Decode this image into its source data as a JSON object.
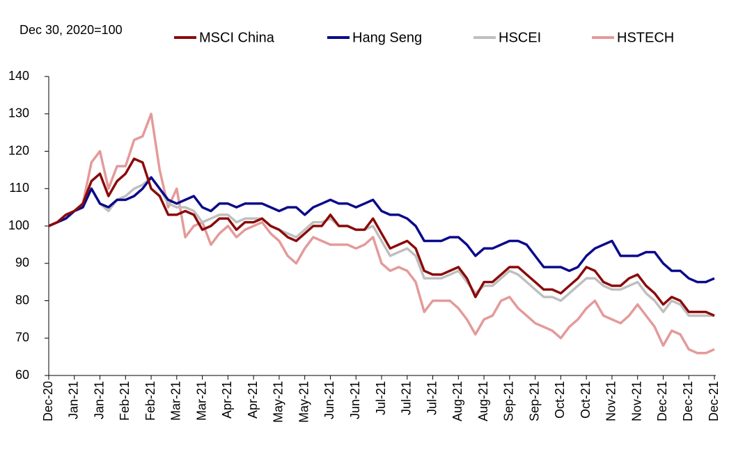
{
  "chart_data": {
    "type": "line",
    "annotation": "Dec 30, 2020=100",
    "categories": [
      "Dec-20",
      null,
      null,
      "Jan-21",
      null,
      null,
      "Jan-21",
      null,
      null,
      "Feb-21",
      null,
      null,
      "Feb-21",
      null,
      null,
      "Mar-21",
      null,
      null,
      "Mar-21",
      null,
      null,
      "Apr-21",
      null,
      null,
      "Apr-21",
      null,
      null,
      "May-21",
      null,
      null,
      "May-21",
      null,
      null,
      "Jun-21",
      null,
      null,
      "Jun-21",
      null,
      null,
      "Jul-21",
      null,
      null,
      "Jul-21",
      null,
      null,
      "Jul-21",
      null,
      null,
      "Aug-21",
      null,
      null,
      "Aug-21",
      null,
      null,
      "Sep-21",
      null,
      null,
      "Sep-21",
      null,
      null,
      "Oct-21",
      null,
      null,
      "Oct-21",
      null,
      null,
      "Nov-21",
      null,
      null,
      "Nov-21",
      null,
      null,
      "Dec-21",
      null,
      null,
      "Dec-21",
      null,
      null,
      "Dec-21"
    ],
    "series": [
      {
        "name": "MSCI China",
        "color": "#8b0a0a",
        "values": [
          100,
          101,
          103,
          104,
          106,
          112,
          114,
          108,
          112,
          114,
          118,
          117,
          110,
          108,
          103,
          103,
          104,
          103,
          99,
          100,
          102,
          102,
          99,
          101,
          101,
          102,
          100,
          99,
          97,
          96,
          98,
          100,
          100,
          103,
          100,
          100,
          99,
          99,
          102,
          98,
          94,
          95,
          96,
          94,
          88,
          87,
          87,
          88,
          89,
          86,
          81,
          85,
          85,
          87,
          89,
          89,
          87,
          85,
          83,
          83,
          82,
          84,
          86,
          89,
          88,
          85,
          84,
          84,
          86,
          87,
          84,
          82,
          79,
          81,
          80,
          77,
          77,
          77,
          76
        ]
      },
      {
        "name": "Hang Seng",
        "color": "#0a0a8b",
        "values": [
          100,
          101,
          102,
          104,
          105,
          110,
          106,
          105,
          107,
          107,
          108,
          110,
          113,
          110,
          107,
          106,
          107,
          108,
          105,
          104,
          106,
          106,
          105,
          106,
          106,
          106,
          105,
          104,
          105,
          105,
          103,
          105,
          106,
          107,
          106,
          106,
          105,
          106,
          107,
          104,
          103,
          103,
          102,
          100,
          96,
          96,
          96,
          97,
          97,
          95,
          92,
          94,
          94,
          95,
          96,
          96,
          95,
          92,
          89,
          89,
          89,
          88,
          89,
          92,
          94,
          95,
          96,
          92,
          92,
          92,
          93,
          93,
          90,
          88,
          88,
          86,
          85,
          85,
          86
        ]
      },
      {
        "name": "HSCEI",
        "color": "#bfbfbf",
        "values": [
          100,
          101,
          102,
          104,
          105,
          110,
          106,
          104,
          107,
          108,
          110,
          111,
          113,
          110,
          106,
          105,
          105,
          104,
          101,
          102,
          103,
          103,
          101,
          102,
          102,
          102,
          100,
          99,
          98,
          97,
          99,
          101,
          101,
          102,
          100,
          100,
          99,
          99,
          100,
          96,
          92,
          93,
          94,
          92,
          86,
          86,
          86,
          87,
          88,
          85,
          82,
          84,
          84,
          86,
          88,
          87,
          85,
          83,
          81,
          81,
          80,
          82,
          84,
          86,
          86,
          84,
          83,
          83,
          84,
          85,
          82,
          80,
          77,
          80,
          79,
          76,
          76,
          76,
          76
        ]
      },
      {
        "name": "HSTECH",
        "color": "#e49a9a",
        "values": [
          100,
          101,
          102,
          104,
          106,
          117,
          120,
          110,
          116,
          116,
          123,
          124,
          130,
          115,
          105,
          110,
          97,
          100,
          101,
          95,
          98,
          100,
          97,
          99,
          100,
          101,
          98,
          96,
          92,
          90,
          94,
          97,
          96,
          95,
          95,
          95,
          94,
          95,
          97,
          90,
          88,
          89,
          88,
          85,
          77,
          80,
          80,
          80,
          78,
          75,
          71,
          75,
          76,
          80,
          81,
          78,
          76,
          74,
          73,
          72,
          70,
          73,
          75,
          78,
          80,
          76,
          75,
          74,
          76,
          79,
          76,
          73,
          68,
          72,
          71,
          67,
          66,
          66,
          67
        ]
      }
    ],
    "ylim": [
      60,
      140
    ],
    "yticks": [
      60,
      70,
      80,
      90,
      100,
      110,
      120,
      130,
      140
    ],
    "grid": false
  }
}
